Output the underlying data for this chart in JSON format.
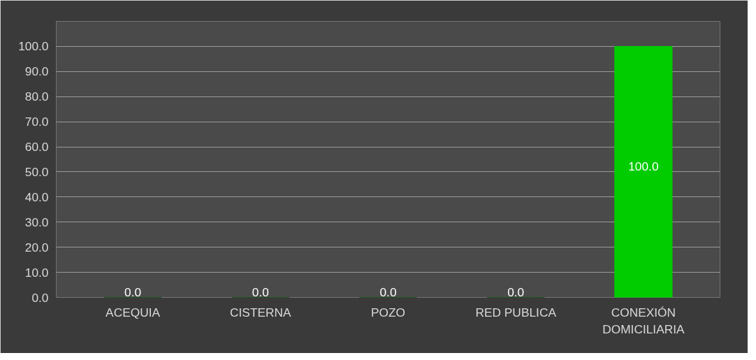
{
  "chart_data": {
    "type": "bar",
    "categories": [
      "ACEQUIA",
      "CISTERNA",
      "POZO",
      "RED PUBLICA",
      "CONEXIÓN\nDOMICILIARIA"
    ],
    "values": [
      0,
      0,
      0,
      0,
      100
    ],
    "colors": [
      "#005000",
      "#005000",
      "#005000",
      "#005000",
      "#00cc00"
    ],
    "value_labels": [
      "0.0",
      "0.0",
      "0.0",
      "0.0",
      "100.0"
    ],
    "ylim": [
      0,
      110
    ],
    "yticks": [
      {
        "value": 0,
        "label": "0.0"
      },
      {
        "value": 10,
        "label": "10.0"
      },
      {
        "value": 20,
        "label": "20.0"
      },
      {
        "value": 30,
        "label": "30.0"
      },
      {
        "value": 40,
        "label": "40.0"
      },
      {
        "value": 50,
        "label": "50.0"
      },
      {
        "value": 60,
        "label": "60.0"
      },
      {
        "value": 70,
        "label": "70.0"
      },
      {
        "value": 80,
        "label": "80.0"
      },
      {
        "value": 90,
        "label": "90.0"
      },
      {
        "value": 100,
        "label": "100.0"
      }
    ],
    "grid": "y"
  }
}
